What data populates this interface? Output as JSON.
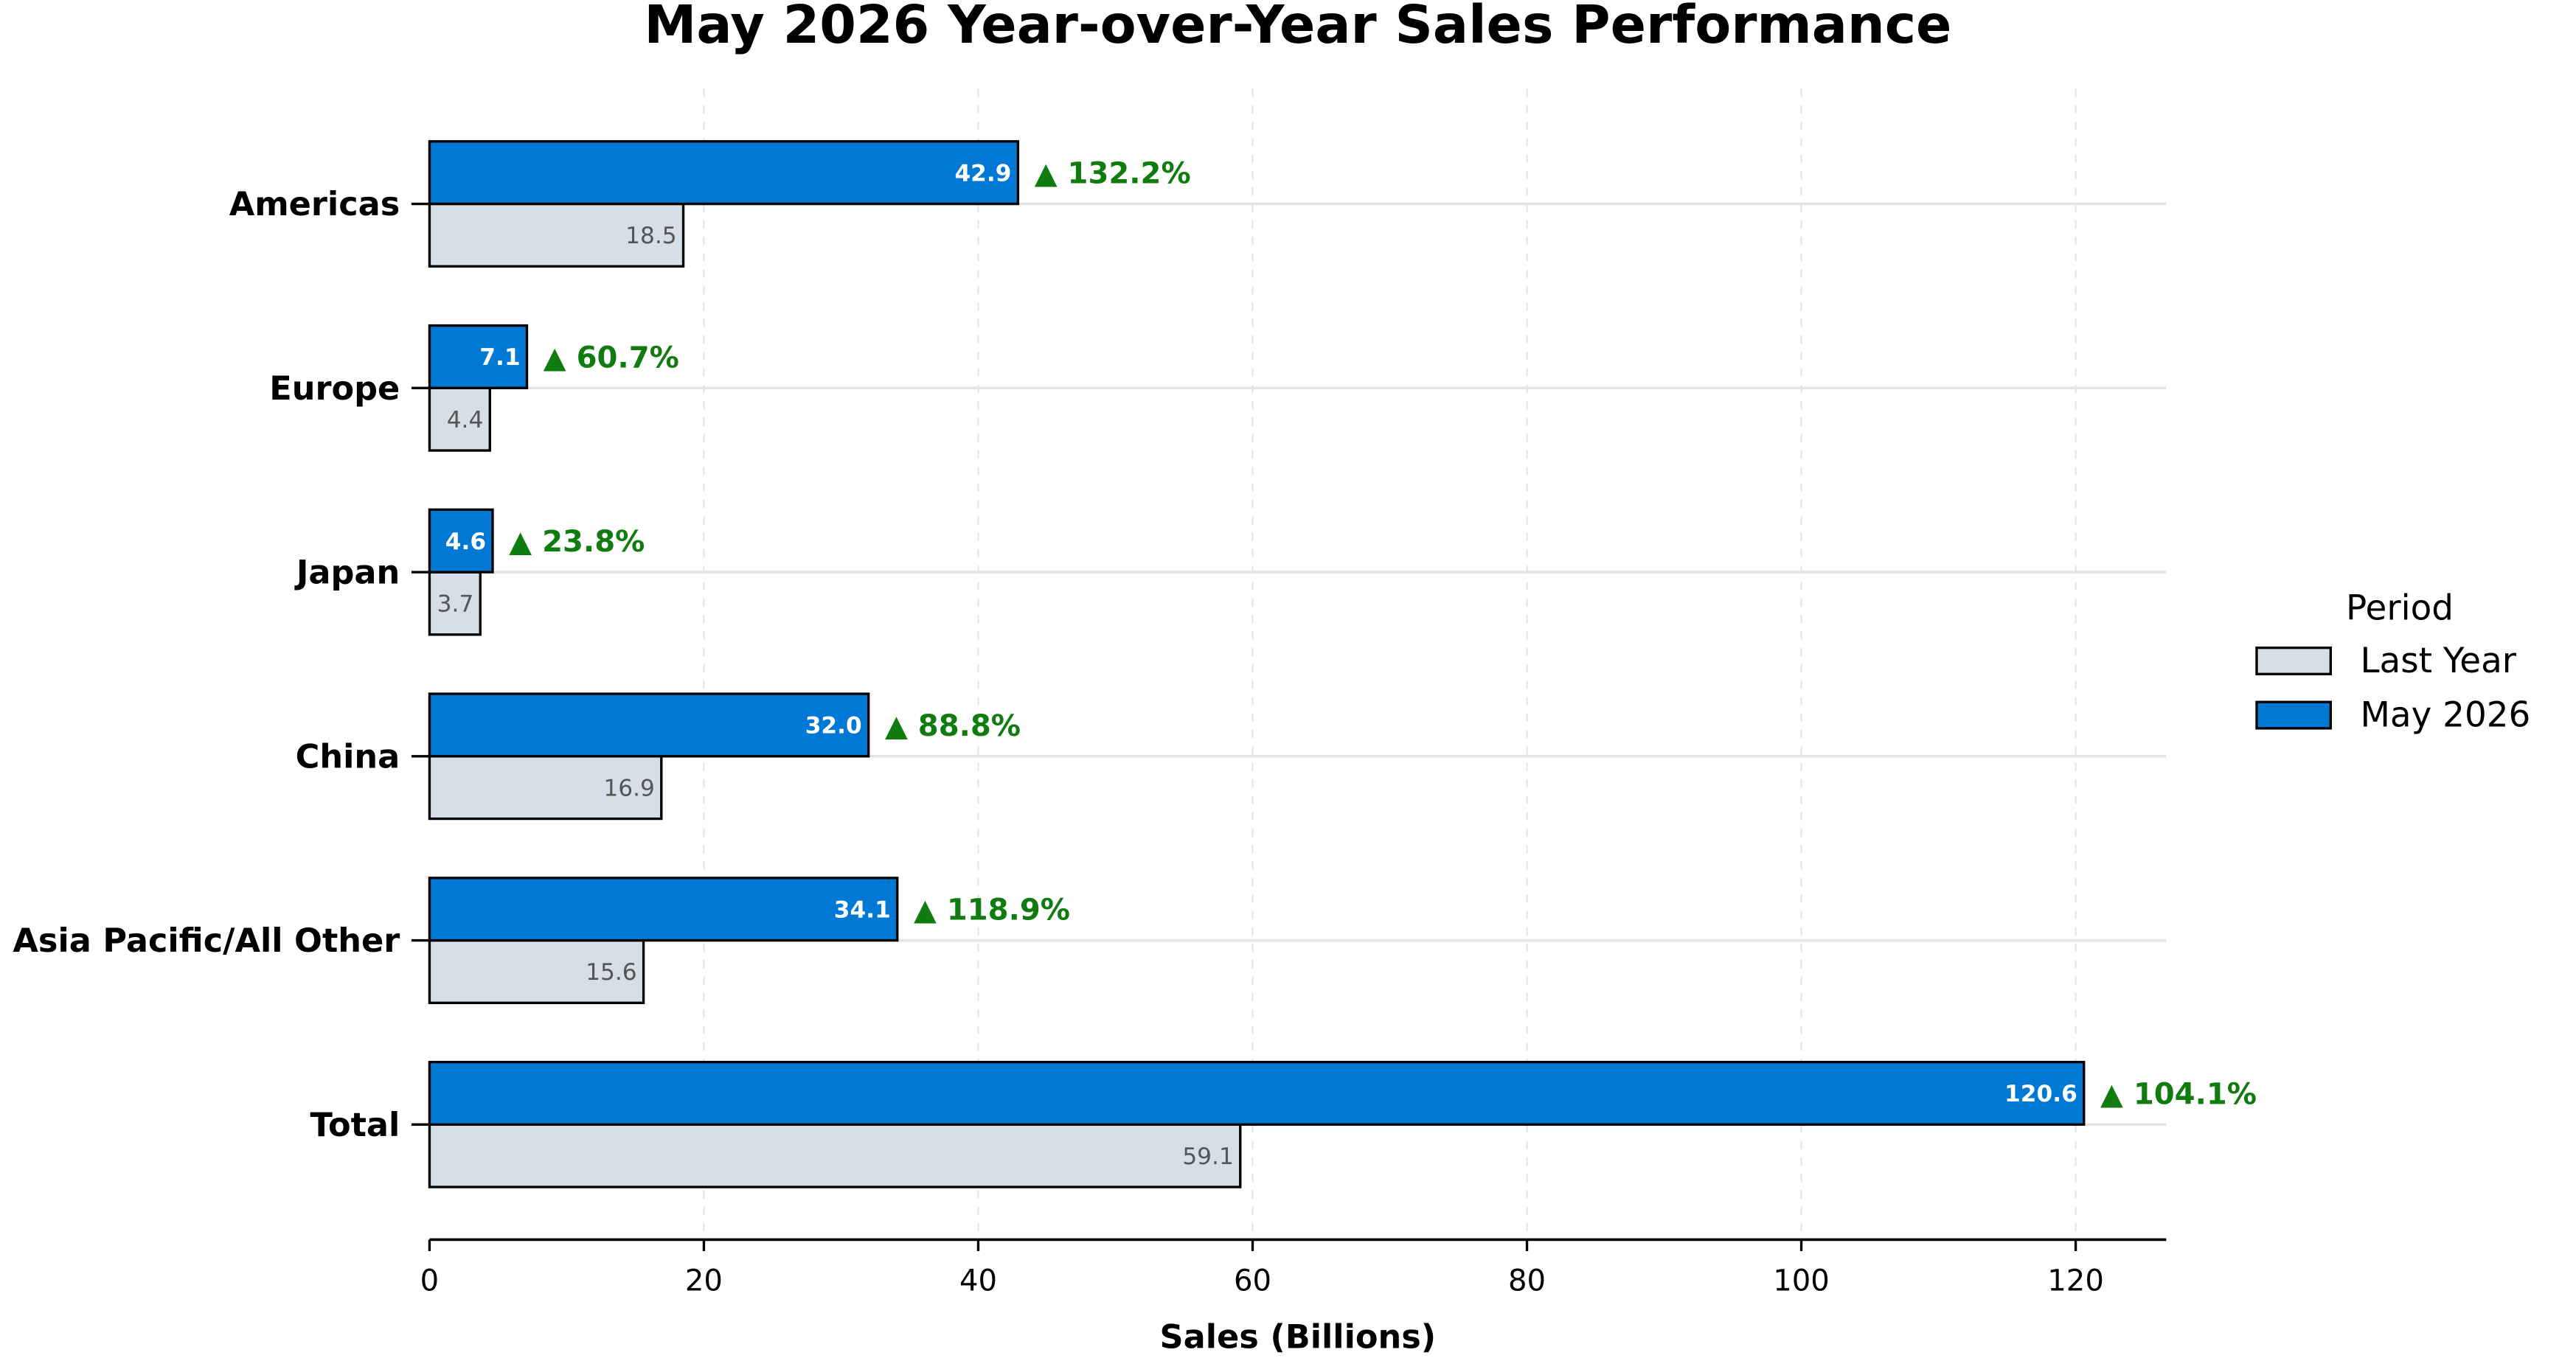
{
  "chart_data": {
    "type": "bar",
    "orientation": "horizontal",
    "title": "May 2026 Year-over-Year Sales Performance",
    "xlabel": "Sales (Billions)",
    "categories": [
      "Americas",
      "Europe",
      "Japan",
      "China",
      "Asia Pacific/All Other",
      "Total"
    ],
    "series": [
      {
        "name": "Last Year",
        "values": [
          18.5,
          4.4,
          3.7,
          16.9,
          15.6,
          59.1
        ],
        "color": "#D6DEE8"
      },
      {
        "name": "May 2026",
        "values": [
          42.9,
          7.1,
          4.6,
          32.0,
          34.1,
          120.6
        ],
        "color": "#0078D4"
      }
    ],
    "growth_labels": [
      "▲ 132.2%",
      "▲ 60.7%",
      "▲ 23.8%",
      "▲ 88.8%",
      "▲ 118.9%",
      "▲ 104.1%"
    ],
    "growth_color": "#107C10",
    "edge_color": "#000000",
    "xlim": [
      0,
      126.6
    ],
    "xticks": [
      0,
      20,
      40,
      60,
      80,
      100,
      120
    ],
    "grid": true,
    "legend": {
      "title": "Period",
      "placement": "right"
    }
  }
}
